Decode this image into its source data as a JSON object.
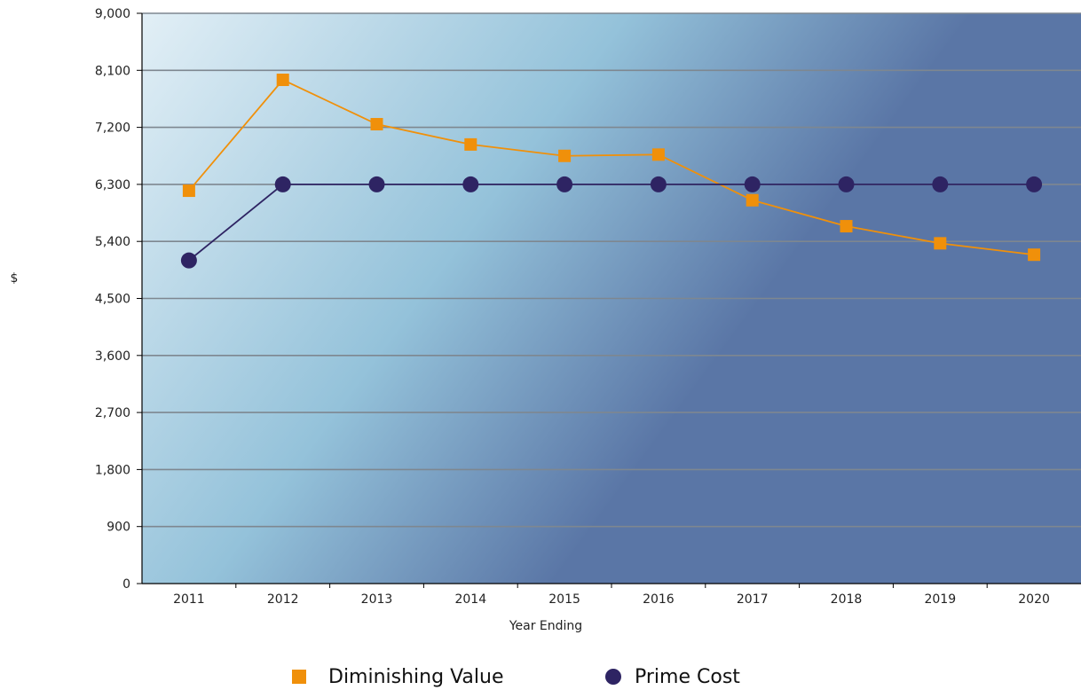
{
  "chart_data": {
    "type": "line",
    "title": "",
    "xlabel": "Year Ending",
    "ylabel": "$",
    "categories": [
      "2011",
      "2012",
      "2013",
      "2014",
      "2015",
      "2016",
      "2017",
      "2018",
      "2019",
      "2020"
    ],
    "ylim": [
      0,
      9000
    ],
    "y_ticks": [
      "0",
      "900",
      "1,800",
      "2,700",
      "3,600",
      "4,500",
      "5,400",
      "6,300",
      "7,200",
      "8,100",
      "9,000"
    ],
    "grid": true,
    "legend_position": "bottom",
    "series": [
      {
        "name": "Diminishing Value",
        "color": "#F0900A",
        "marker": "square",
        "values": [
          6200,
          7950,
          7250,
          6930,
          6750,
          6770,
          6050,
          5640,
          5370,
          5190
        ]
      },
      {
        "name": "Prime Cost",
        "color": "#2E2463",
        "marker": "circle",
        "values": [
          5100,
          6300,
          6300,
          6300,
          6300,
          6300,
          6300,
          6300,
          6300,
          6300
        ]
      }
    ]
  }
}
